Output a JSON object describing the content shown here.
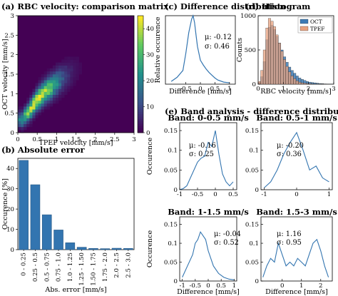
{
  "chart_data": [
    {
      "id": "a",
      "type": "heatmap",
      "title": "(a) RBC velocity: comparison matrix",
      "xlabel": "TPEF velocity [mm/s]",
      "ylabel": "OCT velocity [mm/s]",
      "xlim": [
        0,
        3
      ],
      "ylim": [
        0,
        3
      ],
      "xticks": [
        "0",
        "0.5",
        "1",
        "1.5",
        "2",
        "2.5",
        "3"
      ],
      "yticks": [
        "0",
        "0.5",
        "1",
        "1.5",
        "2",
        "2.5",
        "3"
      ],
      "colorbar": {
        "ticks": [
          "0",
          "10",
          "20",
          "30",
          "40"
        ],
        "range": [
          0,
          45
        ]
      },
      "density_trend": [
        [
          0.12,
          0.35
        ],
        [
          0.3,
          0.55
        ],
        [
          0.5,
          0.85
        ],
        [
          0.7,
          1.05
        ],
        [
          0.9,
          1.2
        ],
        [
          1.1,
          1.35
        ],
        [
          1.4,
          1.55
        ],
        [
          1.7,
          1.75
        ],
        [
          2.0,
          1.95
        ],
        [
          2.3,
          2.2
        ]
      ],
      "peak_count": 45
    },
    {
      "id": "b",
      "type": "bar",
      "title": "(b) Absolute error",
      "xlabel": "Abs. error [mm/s]",
      "ylabel": "Occurence [%]",
      "categories": [
        "0 - 0.25",
        "0.25 - 0.5",
        "0.5 - 0.75",
        "0.75 - 1.0",
        "1.0 - 1.25",
        "1.25 - 1.50",
        "1.50 - 1.75",
        "1.75 - 2.0",
        "2.0 - 2.5",
        "2.5 - 3.0"
      ],
      "values": [
        44,
        32,
        17.2,
        9.7,
        3.4,
        1.2,
        0.6,
        0.5,
        0.7,
        0.6
      ],
      "ylim": [
        0,
        45
      ],
      "yticks": [
        "0",
        "10",
        "20",
        "30",
        "40"
      ],
      "color": "#3375b0"
    },
    {
      "id": "c",
      "type": "line",
      "title": "(c) Difference distribution",
      "xlabel": "Difference [mm/s]",
      "ylabel": "Relative occurence",
      "xlim": [
        -1.2,
        1.2
      ],
      "ylim": [
        0,
        1
      ],
      "xticks": [
        "-0.5",
        "0",
        "0.5",
        "1"
      ],
      "x": [
        -1.0,
        -0.8,
        -0.6,
        -0.5,
        -0.4,
        -0.3,
        -0.25,
        -0.2,
        -0.15,
        -0.1,
        0.0,
        0.1,
        0.2,
        0.3,
        0.4,
        0.5,
        0.6,
        0.8,
        1.0
      ],
      "y": [
        0.04,
        0.1,
        0.2,
        0.45,
        0.75,
        0.95,
        1.0,
        0.9,
        0.72,
        0.55,
        0.35,
        0.28,
        0.22,
        0.17,
        0.13,
        0.09,
        0.06,
        0.03,
        0.02
      ],
      "annotation": [
        "μ: -0.12",
        "σ: 0.46"
      ],
      "color": "#3375b0"
    },
    {
      "id": "d",
      "type": "bar",
      "title": "(d) Histogram",
      "xlabel": "RBC velocity [mm/s]",
      "ylabel": "Counts",
      "xlim": [
        0,
        3
      ],
      "ylim": [
        0,
        1000
      ],
      "xticks": [
        "0",
        "1",
        "2",
        "3"
      ],
      "yticks": [
        "0",
        "500",
        "1000"
      ],
      "bin_width": 0.1,
      "series": [
        {
          "name": "OCT",
          "color": "#3d7bb5",
          "values": [
            30,
            110,
            330,
            650,
            830,
            860,
            800,
            700,
            600,
            500,
            400,
            320,
            250,
            200,
            160,
            120,
            90,
            70,
            55,
            40,
            30,
            25,
            20,
            15,
            10,
            8,
            5,
            4,
            3,
            2
          ]
        },
        {
          "name": "TPEF",
          "color": "#e8a27f",
          "values": [
            40,
            200,
            500,
            820,
            960,
            920,
            840,
            720,
            600,
            480,
            360,
            260,
            180,
            120,
            80,
            50,
            30,
            20,
            15,
            10,
            8,
            5,
            4,
            3,
            2,
            2,
            1,
            1,
            0,
            0
          ]
        }
      ]
    },
    {
      "id": "e",
      "type": "line",
      "title": "(e) Band analysis - difference distributions",
      "xlabel": "Difference [mm/s]",
      "ylabel": "Occurence",
      "panels": [
        {
          "title": "Band: 0-0.5 mm/s",
          "xlim": [
            -1,
            0.6
          ],
          "ylim": [
            0,
            0.17
          ],
          "xticks": [
            "-1",
            "-0.5",
            "0",
            "0.5"
          ],
          "yticks": [
            "0",
            "0.05",
            "0.1",
            "0.15"
          ],
          "x": [
            -1,
            -0.9,
            -0.8,
            -0.7,
            -0.6,
            -0.5,
            -0.4,
            -0.3,
            -0.2,
            -0.1,
            0,
            0.1,
            0.2,
            0.3,
            0.4,
            0.5
          ],
          "y": [
            0,
            0.003,
            0.01,
            0.03,
            0.05,
            0.07,
            0.08,
            0.085,
            0.12,
            0.11,
            0.15,
            0.09,
            0.04,
            0.02,
            0.01,
            0.02
          ],
          "annotation": [
            "μ: -0.16",
            "σ: 0.25"
          ]
        },
        {
          "title": "Band: 0.5-1 mm/s",
          "xlim": [
            -1.1,
            1.1
          ],
          "ylim": [
            0,
            0.17
          ],
          "xticks": [
            "-1",
            "0",
            "1"
          ],
          "yticks": [
            "0",
            "0.05",
            "0.1",
            "0.15"
          ],
          "x": [
            -1,
            -0.8,
            -0.6,
            -0.4,
            -0.2,
            0,
            0.2,
            0.4,
            0.6,
            0.8,
            1.0
          ],
          "y": [
            0.005,
            0.02,
            0.05,
            0.09,
            0.12,
            0.145,
            0.1,
            0.05,
            0.06,
            0.03,
            0.02
          ],
          "annotation": [
            "μ: -0.20",
            "σ: 0.36"
          ]
        },
        {
          "title": "Band: 1-1.5 mm/s",
          "xlim": [
            -1.1,
            1.1
          ],
          "ylim": [
            0,
            0.17
          ],
          "xticks": [
            "-1",
            "-0.5",
            "0",
            "0.5",
            "1"
          ],
          "yticks": [
            "0",
            "0.05",
            "0.1",
            "0.15"
          ],
          "x": [
            -1,
            -0.8,
            -0.6,
            -0.5,
            -0.4,
            -0.3,
            -0.2,
            -0.1,
            0,
            0.2,
            0.4,
            0.6,
            0.8,
            1.0
          ],
          "y": [
            0.01,
            0.04,
            0.07,
            0.1,
            0.11,
            0.13,
            0.12,
            0.11,
            0.08,
            0.04,
            0.02,
            0.01,
            0.005,
            0.003
          ],
          "annotation": [
            "μ: -0.04",
            "σ: 0.52"
          ]
        },
        {
          "title": "Band: 1.5-3 mm/s",
          "xlim": [
            -1.1,
            2.6
          ],
          "ylim": [
            0,
            0.17
          ],
          "xticks": [
            "0",
            "1",
            "2"
          ],
          "yticks": [
            "0",
            "0.05",
            "0.1",
            "0.15"
          ],
          "x": [
            -1,
            -0.8,
            -0.6,
            -0.4,
            -0.2,
            0,
            0.2,
            0.4,
            0.6,
            0.8,
            1.0,
            1.2,
            1.4,
            1.6,
            1.8,
            2.0,
            2.2,
            2.4
          ],
          "y": [
            0.01,
            0.04,
            0.06,
            0.05,
            0.1,
            0.07,
            0.04,
            0.05,
            0.04,
            0.06,
            0.05,
            0.04,
            0.07,
            0.1,
            0.11,
            0.08,
            0.04,
            0.01
          ],
          "annotation": [
            "μ: 1.16",
            "σ: 0.95"
          ]
        }
      ]
    }
  ]
}
